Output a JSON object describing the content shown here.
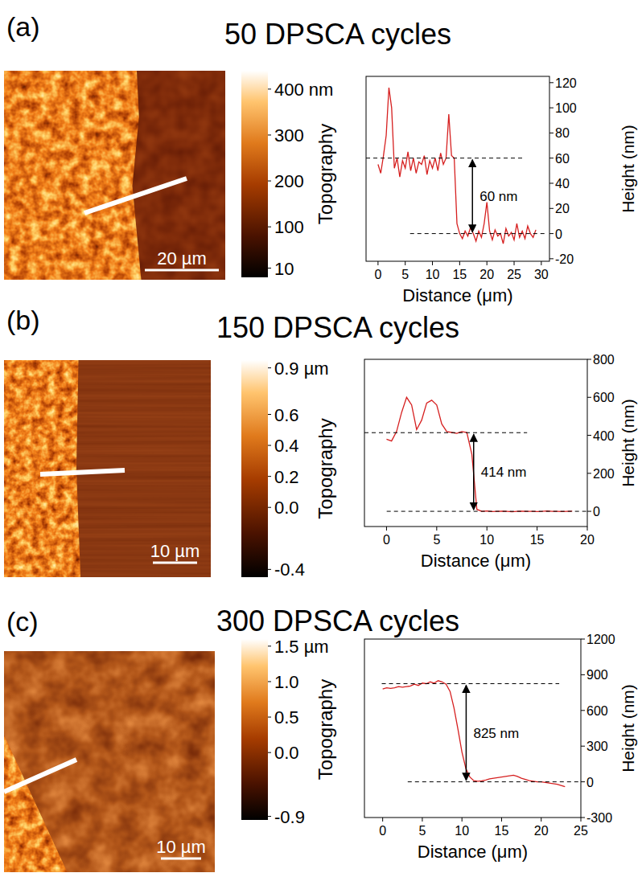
{
  "chart_data": [
    {
      "type": "line",
      "panel_label": "(a)",
      "title": "50 DPSCA cycles",
      "x_label": "Distance (μm)",
      "y_label": "Height (nm)",
      "color": "#d62020",
      "x": [
        0,
        0.5,
        1,
        1.5,
        2,
        2.5,
        3,
        3.5,
        4,
        4.5,
        5,
        5.5,
        6,
        6.5,
        7,
        7.5,
        8,
        8.5,
        9,
        9.5,
        10,
        10.5,
        11,
        11.5,
        12,
        12.5,
        13,
        13.5,
        14,
        14.5,
        15,
        15.5,
        16,
        16.5,
        17,
        17.5,
        18,
        18.5,
        19,
        19.5,
        20,
        20.5,
        21,
        21.5,
        22,
        22.5,
        23,
        23.5,
        24,
        24.5,
        25,
        25.5,
        26,
        26.5,
        27,
        27.5,
        28,
        28.5,
        29
      ],
      "values": [
        55,
        48,
        62,
        78,
        116,
        100,
        52,
        60,
        45,
        58,
        52,
        65,
        50,
        60,
        48,
        57,
        55,
        62,
        47,
        58,
        52,
        60,
        50,
        64,
        55,
        60,
        95,
        62,
        60,
        8,
        0,
        -4,
        2,
        -2,
        5,
        0,
        -6,
        2,
        -3,
        8,
        25,
        2,
        -5,
        3,
        -2,
        0,
        -8,
        4,
        -2,
        1,
        -5,
        8,
        -3,
        2,
        -4,
        6,
        0,
        -3,
        3
      ],
      "xlim": [
        -2.2,
        31.5
      ],
      "xticks": [
        0,
        5,
        10,
        15,
        20,
        25,
        30
      ],
      "ylim": [
        -22,
        125
      ],
      "yticks": [
        -20,
        0,
        20,
        40,
        60,
        80,
        100,
        120
      ],
      "annotations": [
        {
          "label": "60 nm",
          "from": 0,
          "to": 60
        }
      ],
      "image": {
        "scale_bar": "20 µm"
      },
      "colorbar": {
        "label": "Topography",
        "range": [
          -10,
          440
        ],
        "ticks": [
          {
            "value": 400,
            "label": "400 nm"
          },
          300,
          200,
          100,
          10
        ]
      }
    },
    {
      "type": "line",
      "panel_label": "(b)",
      "title": "150 DPSCA cycles",
      "x_label": "Distance (μm)",
      "y_label": "Height (nm)",
      "color": "#d62020",
      "x": [
        0,
        0.5,
        1,
        1.5,
        2,
        2.5,
        3,
        3.5,
        4,
        4.5,
        5,
        5.5,
        6,
        6.5,
        7,
        7.5,
        8,
        8.5,
        9,
        9.5,
        10,
        10.5,
        11,
        11.5,
        12,
        12.5,
        13,
        13.5,
        14,
        14.5,
        15,
        15.5,
        16,
        16.5,
        17,
        17.5,
        18,
        18.5
      ],
      "values": [
        380,
        370,
        420,
        520,
        600,
        560,
        430,
        480,
        570,
        585,
        560,
        460,
        420,
        415,
        410,
        420,
        415,
        300,
        10,
        0,
        2,
        -1,
        0,
        1,
        0,
        -2,
        0,
        1,
        0,
        0,
        -1,
        0,
        2,
        0,
        0,
        -1,
        0,
        1
      ],
      "xlim": [
        -2.2,
        20
      ],
      "xticks": [
        0,
        5,
        10,
        15,
        20
      ],
      "ylim": [
        -80,
        800
      ],
      "yticks": [
        0,
        200,
        400,
        600,
        800
      ],
      "annotations": [
        {
          "label": "414 nm",
          "from": 0,
          "to": 414
        }
      ],
      "image": {
        "scale_bar": "10 µm"
      },
      "colorbar": {
        "label": "Topography",
        "range": [
          -0.45,
          0.95
        ],
        "ticks": [
          {
            "value": 0.9,
            "label": "0.9 µm"
          },
          0.6,
          0.4,
          0.2,
          {
            "value": 0,
            "label": "0.0"
          },
          -0.4
        ]
      }
    },
    {
      "type": "line",
      "panel_label": "(c)",
      "title": "300 DPSCA cycles",
      "x_label": "Distance (μm)",
      "y_label": "Height (nm)",
      "color": "#d62020",
      "x": [
        0,
        0.5,
        1,
        1.5,
        2,
        2.5,
        3,
        3.5,
        4,
        4.5,
        5,
        5.5,
        6,
        6.5,
        7,
        7.5,
        8,
        8.5,
        9,
        9.5,
        10,
        10.5,
        11,
        11.5,
        12,
        12.5,
        13,
        13.5,
        14,
        14.5,
        15,
        15.5,
        16,
        16.5,
        17,
        17.5,
        18,
        18.5,
        19,
        19.5,
        20,
        20.5,
        21,
        21.5,
        22,
        22.5,
        23
      ],
      "values": [
        780,
        790,
        785,
        790,
        800,
        795,
        800,
        805,
        820,
        810,
        830,
        825,
        840,
        830,
        850,
        840,
        820,
        760,
        620,
        440,
        250,
        110,
        40,
        10,
        5,
        8,
        15,
        25,
        30,
        35,
        40,
        45,
        50,
        55,
        45,
        30,
        20,
        10,
        5,
        0,
        0,
        -5,
        -10,
        -15,
        -20,
        -30,
        -40
      ],
      "xlim": [
        -2.3,
        25
      ],
      "xticks": [
        0,
        5,
        10,
        15,
        20,
        25
      ],
      "ylim": [
        -300,
        1200
      ],
      "yticks": [
        -300,
        0,
        300,
        600,
        900,
        1200
      ],
      "annotations": [
        {
          "label": "825 nm",
          "from": 0,
          "to": 825
        }
      ],
      "image": {
        "scale_bar": "10 µm"
      },
      "colorbar": {
        "label": "Topography",
        "range": [
          -0.95,
          1.6
        ],
        "ticks": [
          {
            "value": 1.5,
            "label": "1.5 µm"
          },
          {
            "value": 1,
            "label": "1.0"
          },
          0.5,
          {
            "value": 0,
            "label": "0.0"
          },
          -0.9
        ]
      }
    }
  ]
}
